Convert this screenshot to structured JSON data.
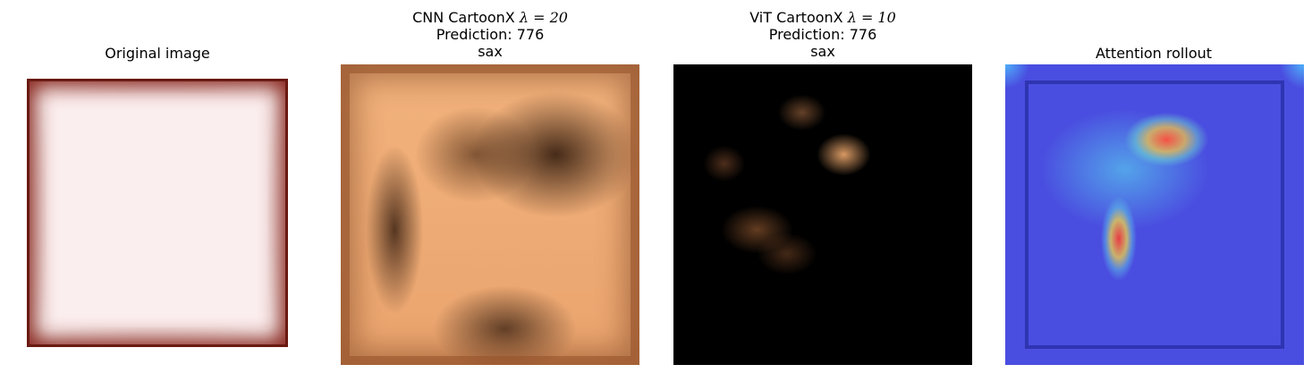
{
  "panels": [
    {
      "title_lines": [
        "Original image"
      ]
    },
    {
      "title_method": "CNN CartoonX ",
      "title_lambda": "λ = 20",
      "prediction": "Prediction: 776",
      "label": "sax"
    },
    {
      "title_method": "ViT CartoonX ",
      "title_lambda": "λ = 10",
      "prediction": "Prediction: 776",
      "label": "sax"
    },
    {
      "title_lines": [
        "Attention rollout"
      ]
    }
  ]
}
